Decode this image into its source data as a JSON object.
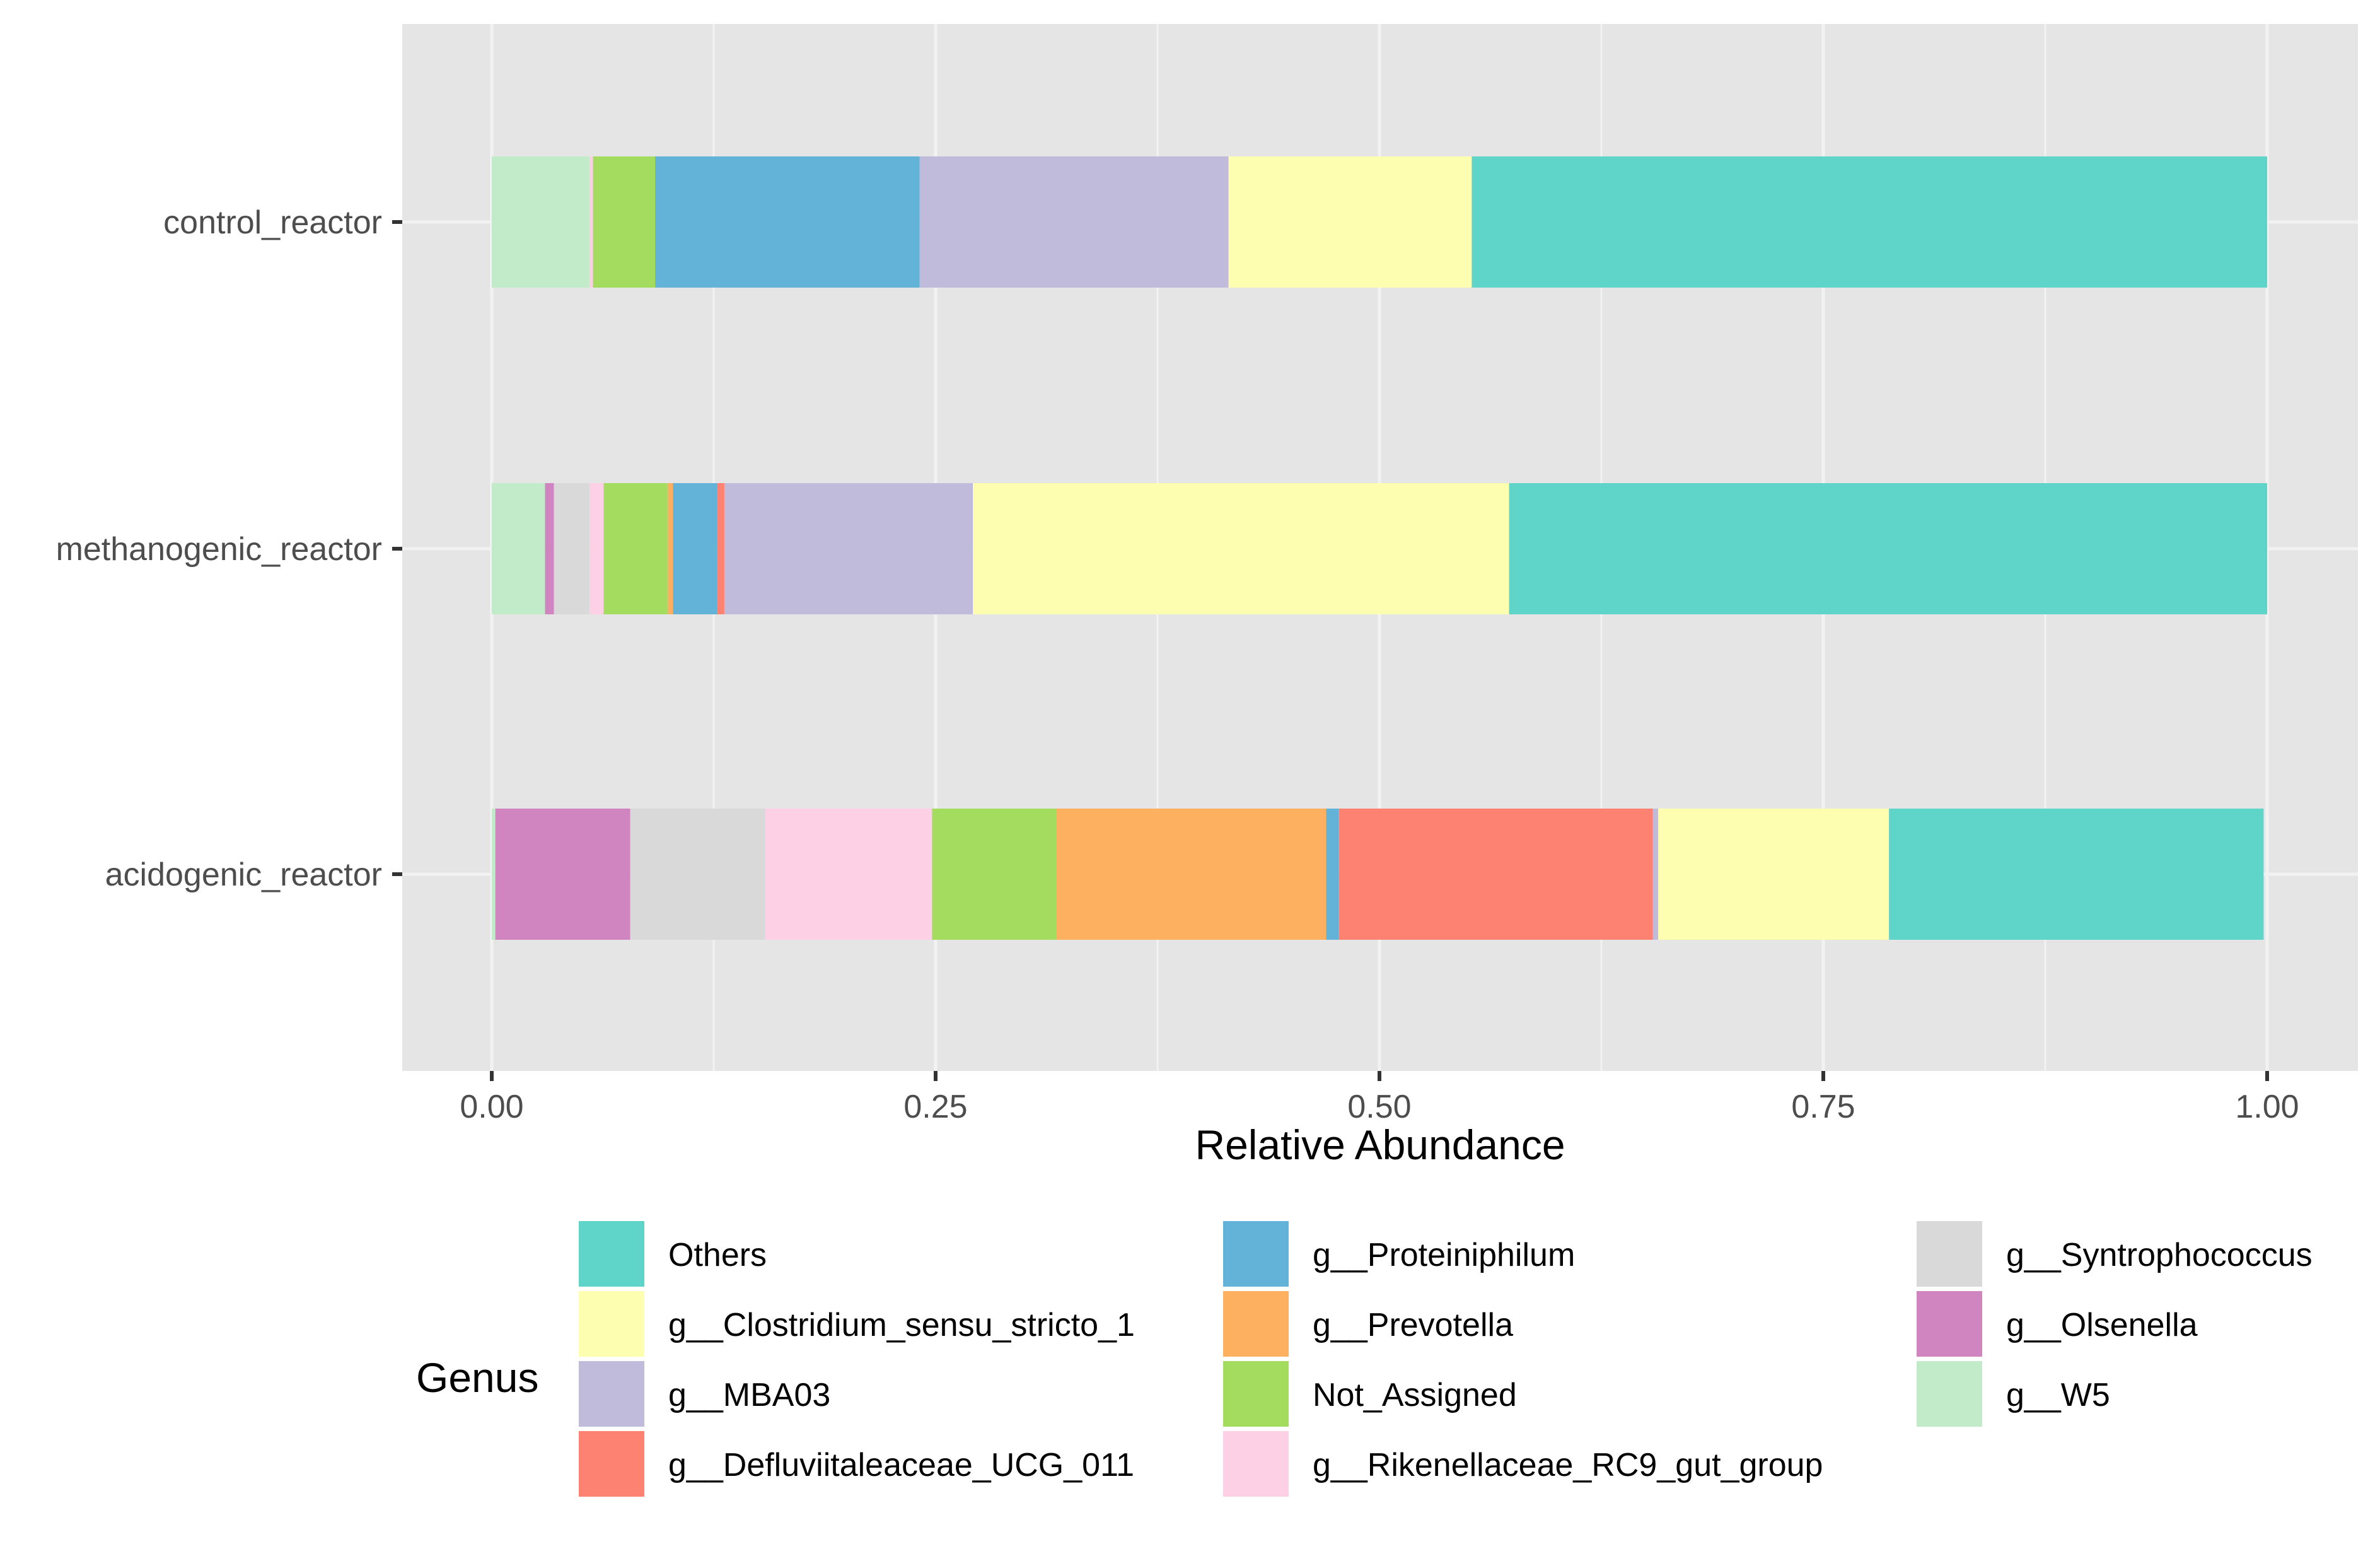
{
  "chart_data": {
    "type": "bar",
    "orientation": "horizontal",
    "stacked": true,
    "title": "",
    "xlabel": "Relative Abundance",
    "ylabel": "",
    "xlim": [
      0,
      1
    ],
    "x_ticks": [
      "0.00",
      "0.25",
      "0.50",
      "0.75",
      "1.00"
    ],
    "x_tick_values": [
      0,
      0.25,
      0.5,
      0.75,
      1.0
    ],
    "categories": [
      "acidogenic_reactor",
      "methanogenic_reactor",
      "control_reactor"
    ],
    "grid": true,
    "legend_position": "bottom",
    "legend_title": "Genus",
    "series": [
      {
        "name": "g__W5",
        "color": "#c2ebc9",
        "values": [
          0.002,
          0.03,
          0.055
        ]
      },
      {
        "name": "g__Olsenella",
        "color": "#d085c1",
        "values": [
          0.076,
          0.005,
          0.0
        ]
      },
      {
        "name": "g__Syntrophococcus",
        "color": "#d9d9d9",
        "values": [
          0.076,
          0.02,
          0.0
        ]
      },
      {
        "name": "g__Rikenellaceae_RC9_gut_group",
        "color": "#fdd0e5",
        "values": [
          0.094,
          0.008,
          0.002
        ]
      },
      {
        "name": "Not_Assigned",
        "color": "#a3dc5f",
        "values": [
          0.07,
          0.036,
          0.035
        ]
      },
      {
        "name": "g__Prevotella",
        "color": "#fdb05f",
        "values": [
          0.152,
          0.003,
          0.0
        ]
      },
      {
        "name": "g__Proteiniphilum",
        "color": "#63b2d7",
        "values": [
          0.007,
          0.025,
          0.149
        ]
      },
      {
        "name": "g__Defluviitaleaceae_UCG_011",
        "color": "#fd8272",
        "values": [
          0.177,
          0.004,
          0.0
        ]
      },
      {
        "name": "g__MBA03",
        "color": "#c1bbdb",
        "values": [
          0.003,
          0.14,
          0.174
        ]
      },
      {
        "name": "g__Clostridium_sensu_stricto_1",
        "color": "#fefeb1",
        "values": [
          0.13,
          0.302,
          0.137
        ]
      },
      {
        "name": "Others",
        "color": "#5fd4c8",
        "values": [
          0.211,
          0.427,
          0.448
        ]
      }
    ],
    "legend_columns": [
      [
        "Others",
        "g__Clostridium_sensu_stricto_1",
        "g__MBA03",
        "g__Defluviitaleaceae_UCG_011"
      ],
      [
        "g__Proteiniphilum",
        "g__Prevotella",
        "Not_Assigned",
        "g__Rikenellaceae_RC9_gut_group"
      ],
      [
        "g__Syntrophococcus",
        "g__Olsenella",
        "g__W5"
      ]
    ],
    "panel_background": "#e5e5e5",
    "gridline_color": "#f2f2f2"
  }
}
